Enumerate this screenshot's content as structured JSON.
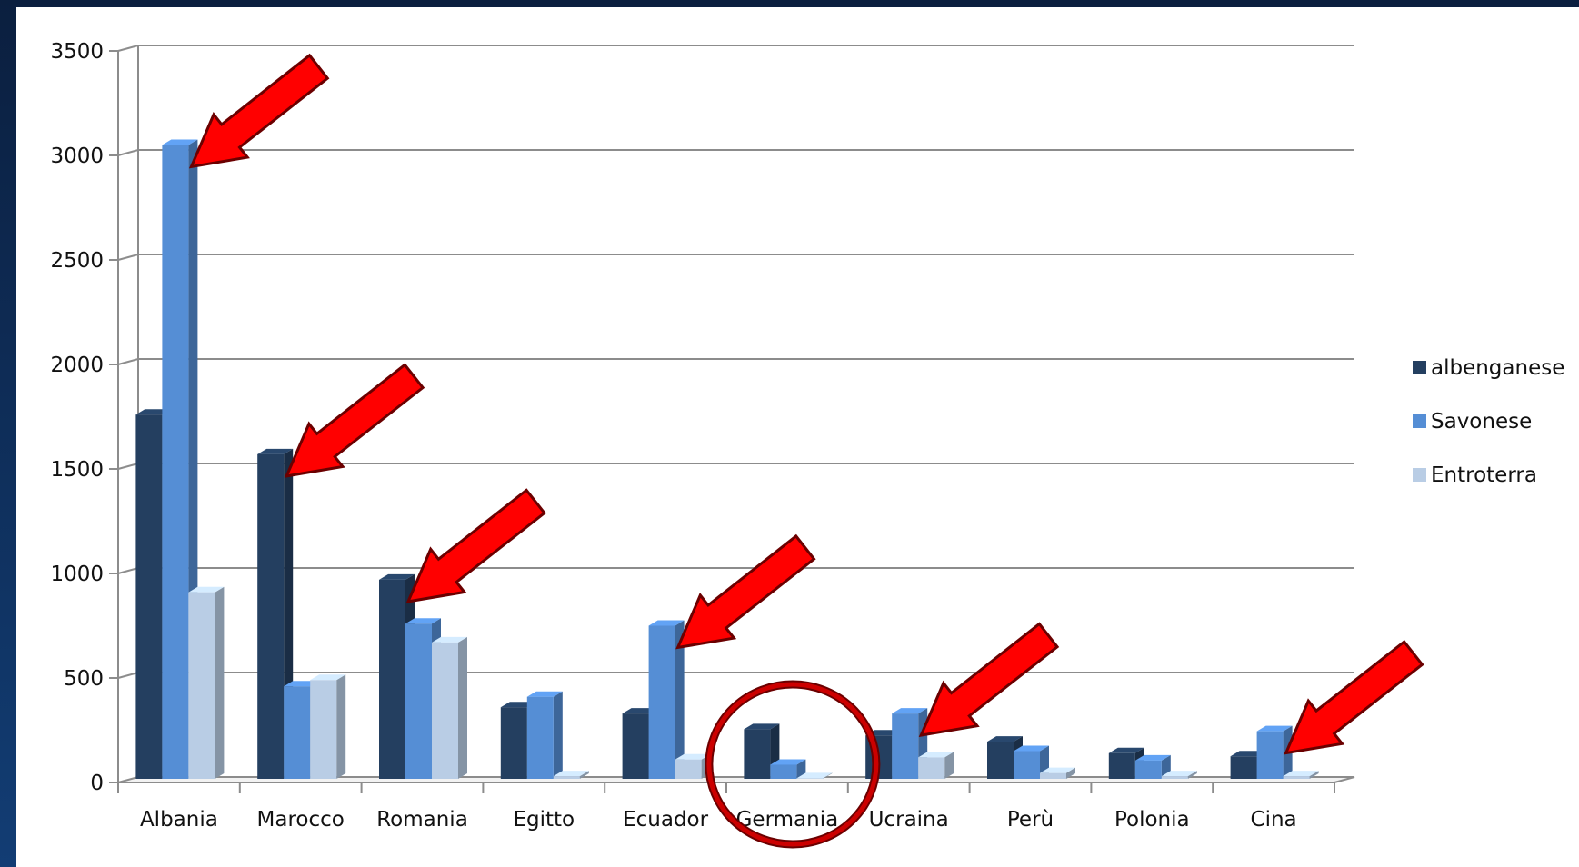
{
  "chart_data": {
    "type": "bar",
    "title": "",
    "xlabel": "",
    "ylabel": "",
    "ylim": [
      0,
      3500
    ],
    "yticks": [
      0,
      500,
      1000,
      1500,
      2000,
      2500,
      3000,
      3500
    ],
    "grid": true,
    "legend": "right",
    "categories": [
      "Albania",
      "Marocco",
      "Romania",
      "Egitto",
      "Ecuador",
      "Germania",
      "Ucraina",
      "Perù",
      "Polonia",
      "Cina"
    ],
    "series": [
      {
        "name": "albenganese",
        "color": "#243f60",
        "values": [
          1760,
          1570,
          970,
          360,
          330,
          255,
          225,
          195,
          140,
          125
        ]
      },
      {
        "name": "Savonese",
        "color": "#558ed5",
        "values": [
          3050,
          460,
          760,
          410,
          750,
          85,
          330,
          150,
          105,
          245
        ]
      },
      {
        "name": "Entroterra",
        "color": "#b9cde5",
        "values": [
          910,
          490,
          670,
          30,
          110,
          20,
          120,
          45,
          30,
          30
        ]
      }
    ],
    "annotations": {
      "arrow_color": "#ff0000",
      "circle_color": "#cc0000",
      "arrows_point_to": [
        "Albania",
        "Marocco",
        "Romania",
        "Ecuador",
        "Ucraina",
        "Cina"
      ],
      "circled": [
        "Germania"
      ]
    }
  }
}
